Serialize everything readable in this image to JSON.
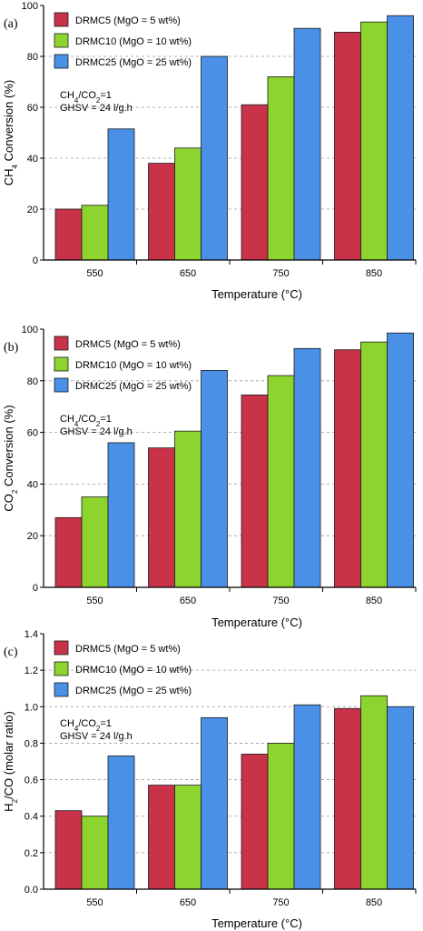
{
  "chart_data": [
    {
      "type": "bar",
      "panel_label": "(a)",
      "categories": [
        "550",
        "650",
        "750",
        "850"
      ],
      "series": [
        {
          "name": "DRMC5 (MgO = 5 wt%)",
          "color": "#c8334a",
          "values": [
            20,
            38,
            61,
            89.5
          ]
        },
        {
          "name": "DRMC10 (MgO = 10 wt%)",
          "color": "#8ed42e",
          "values": [
            21.5,
            44,
            72,
            93.5
          ]
        },
        {
          "name": "DRMC25 (MgO = 25 wt%)",
          "color": "#4a90e6",
          "values": [
            51.5,
            80,
            91,
            96
          ]
        }
      ],
      "xlabel": "Temperature (°C)",
      "ylabel_parts": [
        "CH",
        "4",
        " Conversion (%)"
      ],
      "ylim": [
        0,
        100
      ],
      "yticks": [
        "0",
        "20",
        "40",
        "60",
        "80",
        "100"
      ],
      "conditions": [
        {
          "parts": [
            "CH",
            "4",
            "/CO",
            "2",
            "=1"
          ]
        },
        {
          "parts": [
            "GHSV = 24 l/g.h"
          ]
        }
      ],
      "grid": "horizontal dashed",
      "legend_position": "top-left"
    },
    {
      "type": "bar",
      "panel_label": "(b)",
      "categories": [
        "550",
        "650",
        "750",
        "850"
      ],
      "series": [
        {
          "name": "DRMC5 (MgO = 5 wt%)",
          "color": "#c8334a",
          "values": [
            27,
            54,
            74.5,
            92
          ]
        },
        {
          "name": "DRMC10 (MgO = 10 wt%)",
          "color": "#8ed42e",
          "values": [
            35,
            60.5,
            82,
            95
          ]
        },
        {
          "name": "DRMC25 (MgO = 25 wt%)",
          "color": "#4a90e6",
          "values": [
            56,
            84,
            92.5,
            98.5
          ]
        }
      ],
      "xlabel": "Temperature (°C)",
      "ylabel_parts": [
        "CO",
        "2",
        " Conversion (%)"
      ],
      "ylim": [
        0,
        100
      ],
      "yticks": [
        "0",
        "20",
        "40",
        "60",
        "80",
        "100"
      ],
      "conditions": [
        {
          "parts": [
            "CH",
            "4",
            "/CO",
            "2",
            "=1"
          ]
        },
        {
          "parts": [
            "GHSV = 24 l/g.h"
          ]
        }
      ],
      "grid": "horizontal dashed",
      "legend_position": "top-left"
    },
    {
      "type": "bar",
      "panel_label": "(c)",
      "categories": [
        "550",
        "650",
        "750",
        "850"
      ],
      "series": [
        {
          "name": "DRMC5 (MgO = 5 wt%)",
          "color": "#c8334a",
          "values": [
            0.43,
            0.57,
            0.74,
            0.99
          ]
        },
        {
          "name": "DRMC10 (MgO = 10 wt%)",
          "color": "#8ed42e",
          "values": [
            0.4,
            0.57,
            0.8,
            1.06
          ]
        },
        {
          "name": "DRMC25 (MgO = 25 wt%)",
          "color": "#4a90e6",
          "values": [
            0.73,
            0.94,
            1.01,
            1.0
          ]
        }
      ],
      "xlabel": "Temperature (°C)",
      "ylabel_parts": [
        "H",
        "2",
        "/CO (molar ratio)"
      ],
      "ylim": [
        0,
        1.4
      ],
      "yticks": [
        "0.0",
        "0.2",
        "0.4",
        "0.6",
        "0.8",
        "1.0",
        "1.2",
        "1.4"
      ],
      "conditions": [
        {
          "parts": [
            "CH",
            "4",
            "/CO",
            "2",
            "=1"
          ]
        },
        {
          "parts": [
            "GHSV = 24 l/g.h"
          ]
        }
      ],
      "grid": "horizontal dashed",
      "legend_position": "top-left"
    }
  ]
}
